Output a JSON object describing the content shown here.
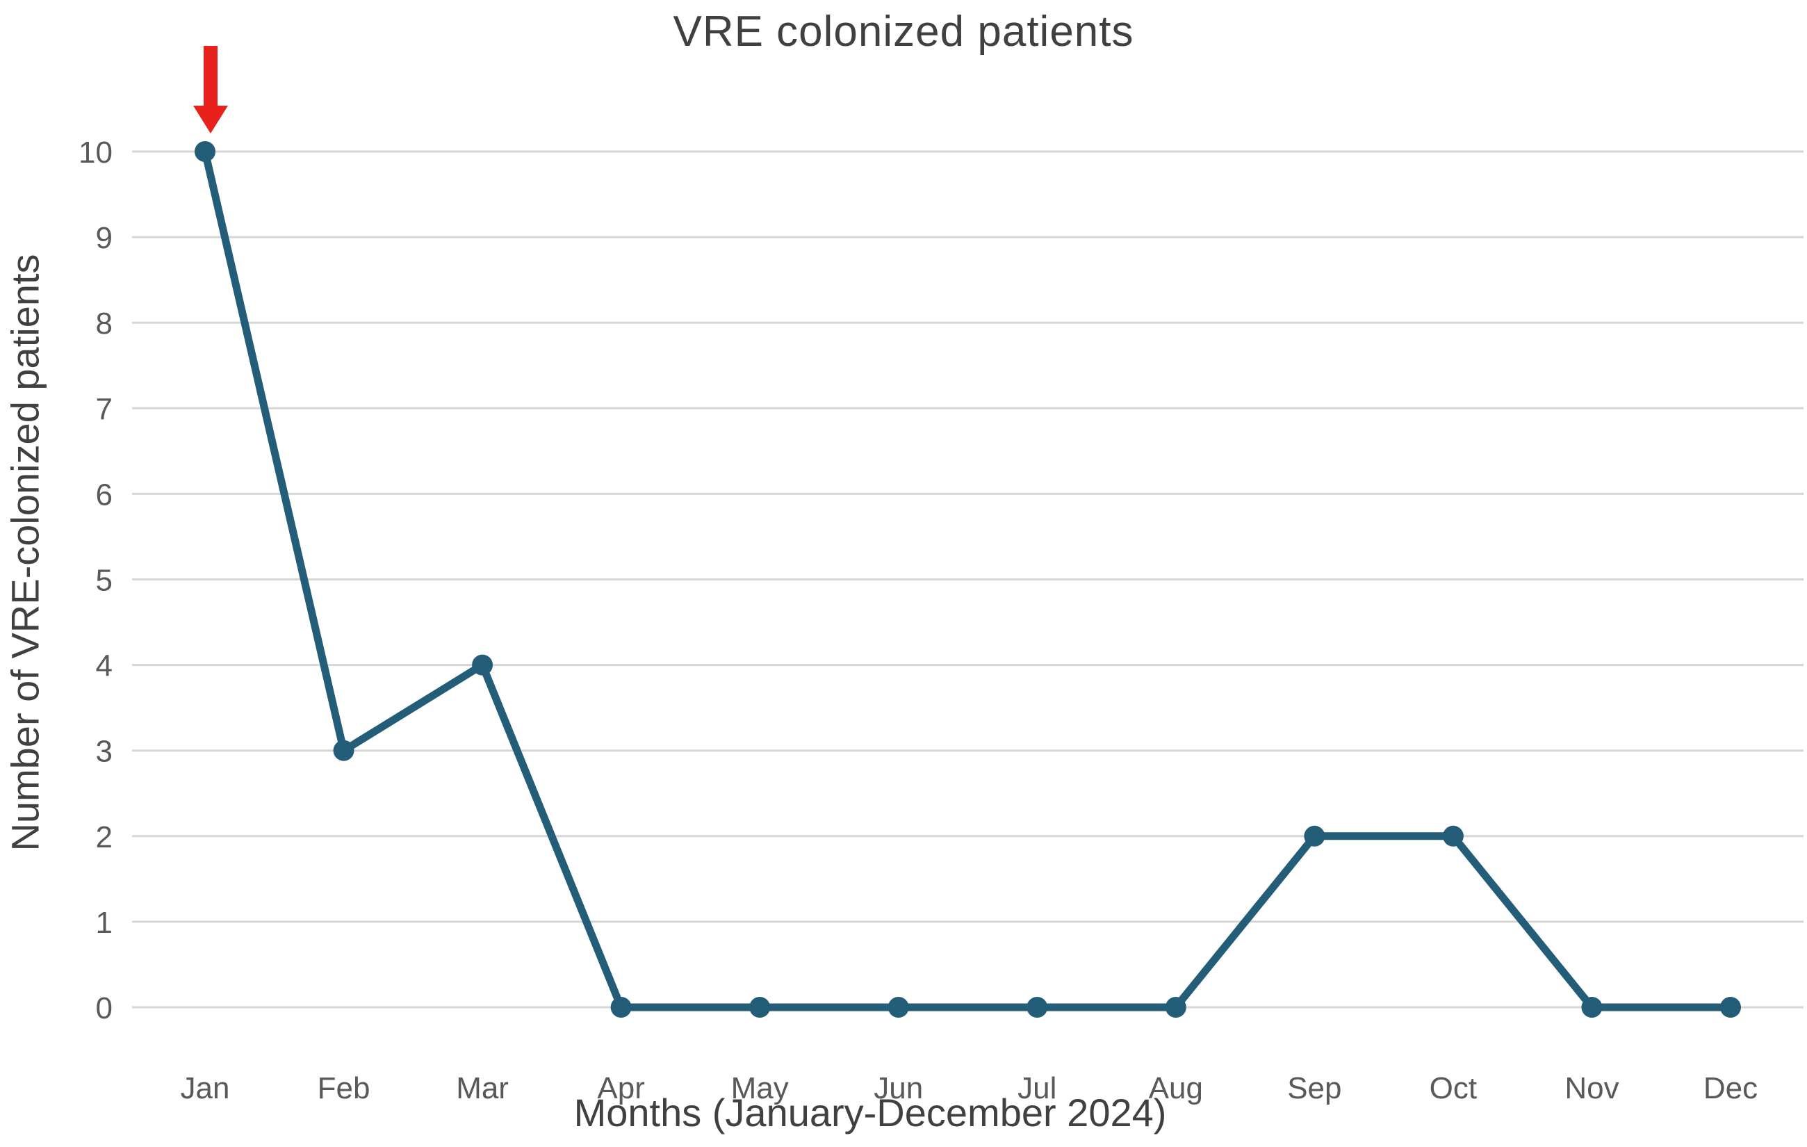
{
  "chart_data": {
    "type": "line",
    "title": "VRE colonized patients",
    "xlabel": "Months (January-December 2024)",
    "ylabel": "Number of VRE-colonized patients",
    "categories": [
      "Jan",
      "Feb",
      "Mar",
      "Apr",
      "May",
      "Jun",
      "Jul",
      "Aug",
      "Sep",
      "Oct",
      "Nov",
      "Dec"
    ],
    "series": [
      {
        "name": "VRE colonized patients",
        "values": [
          10,
          3,
          4,
          0,
          0,
          0,
          0,
          0,
          2,
          2,
          0,
          0
        ]
      }
    ],
    "ylim": [
      0,
      10
    ],
    "yticks": [
      0,
      1,
      2,
      3,
      4,
      5,
      6,
      7,
      8,
      9,
      10
    ],
    "grid": "horizontal",
    "legend": "none",
    "marker": "circle",
    "annotation": {
      "type": "arrow-down",
      "target_category": "Jan",
      "target_value": 10
    }
  },
  "colors": {
    "line": "#245d78",
    "marker": "#245d78",
    "gridline": "#d6d6d6",
    "tick_label": "#595959",
    "title_text": "#404040",
    "arrow": "#e8211d",
    "background": "#ffffff"
  }
}
